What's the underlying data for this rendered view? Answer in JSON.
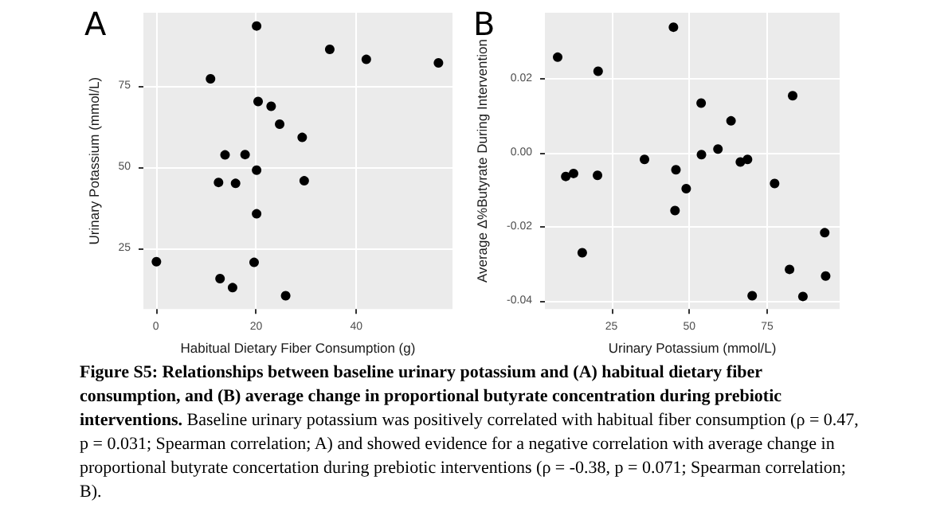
{
  "chart_data": [
    {
      "type": "scatter",
      "title": "A",
      "xlabel": "Habitual Dietary Fiber Consumption (g)",
      "ylabel": "Urinary Potassium (mmol/L)",
      "xlim": [
        -2.5,
        59.2
      ],
      "ylim": [
        6.2,
        97.7
      ],
      "xticks": [
        0,
        20,
        40
      ],
      "yticks": [
        25,
        50,
        75
      ],
      "grid": true,
      "marker": "circle",
      "series": [
        {
          "color": "#000000",
          "x": [
            20.1,
            34.7,
            42.0,
            56.4,
            10.9,
            20.4,
            23.0,
            24.7,
            29.2,
            13.8,
            17.8,
            20.1,
            12.5,
            15.9,
            29.6,
            20.1,
            0.1,
            19.6,
            12.8,
            15.3,
            25.9
          ],
          "values": [
            93.6,
            86.4,
            83.3,
            82.2,
            77.3,
            70.3,
            68.8,
            63.3,
            59.2,
            53.8,
            53.9,
            49.1,
            45.3,
            45.0,
            45.8,
            35.6,
            20.8,
            20.6,
            15.6,
            12.8,
            10.3
          ]
        }
      ]
    },
    {
      "type": "scatter",
      "title": "B",
      "xlabel": "Urinary Potassium (mmol/L)",
      "ylabel": "Average Δ%Butyrate During Intervention",
      "xlim": [
        3.6,
        98.3
      ],
      "ylim": [
        -0.0422,
        0.0378
      ],
      "xticks": [
        25,
        50,
        75
      ],
      "yticks": [
        -0.04,
        -0.02,
        {
          "value": 0,
          "label": "0.00"
        },
        0.02
      ],
      "grid": true,
      "marker": "circle",
      "annotations": [
        "Figure S5: Relationships between baseline urinary potassium and (A) habitual dietary fiber consumption, and (B) average change in proportional butyrate concentration during prebiotic interventions.",
        "Baseline urinary potassium was positively correlated with habitual fiber consumption (ρ = 0.47, p = 0.031; Spearman correlation; A) and showed evidence for a negative correlation with average change in proportional butyrate concertation during prebiotic interventions (ρ = -0.38, p = 0.071; Spearman correlation; B)."
      ],
      "series": [
        {
          "color": "#000000",
          "x": [
            7.7,
            44.9,
            20.7,
            83.2,
            53.8,
            63.4,
            59.2,
            53.9,
            66.4,
            68.7,
            35.6,
            45.7,
            10.3,
            12.8,
            20.5,
            49.0,
            77.4,
            45.4,
            15.6,
            93.5,
            82.2,
            93.8,
            70.2,
            86.5
          ],
          "values": [
            0.0258,
            0.0339,
            0.022,
            0.0154,
            0.0134,
            0.0086,
            0.001,
            -0.0005,
            -0.0025,
            -0.0018,
            -0.0018,
            -0.0046,
            -0.0064,
            -0.0056,
            -0.0061,
            -0.0097,
            -0.0083,
            -0.0156,
            -0.027,
            -0.0216,
            -0.0315,
            -0.0333,
            -0.0386,
            -0.0388
          ]
        }
      ]
    }
  ]
}
